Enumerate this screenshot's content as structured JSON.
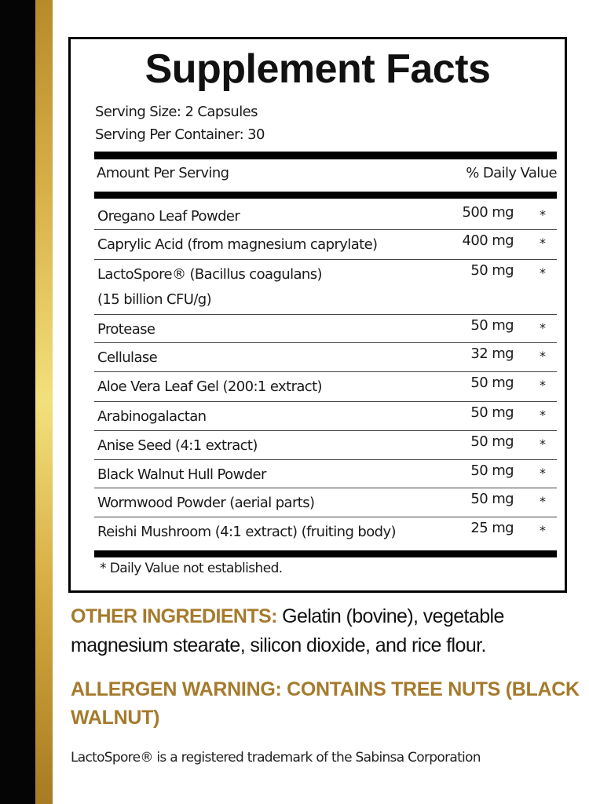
{
  "title": "Supplement Facts",
  "serving_size": "Serving Size: 2 Capsules",
  "servings_per_container": "Serving Per Container: 30",
  "header": {
    "amount": "Amount Per Serving",
    "dv": "% Daily Value"
  },
  "rows": [
    {
      "name": "Oregano Leaf Powder",
      "amount": "500 mg",
      "dv": "*"
    },
    {
      "name": "Caprylic Acid (from magnesium caprylate)",
      "amount": "400 mg",
      "dv": "*"
    },
    {
      "name": "LactoSpore® (Bacillus coagulans)",
      "name2": "(15 billion CFU/g)",
      "amount": "50 mg",
      "dv": "*"
    },
    {
      "name": "Protease",
      "amount": "50 mg",
      "dv": "*"
    },
    {
      "name": "Cellulase",
      "amount": "32 mg",
      "dv": "*"
    },
    {
      "name": "Aloe Vera Leaf Gel (200:1 extract)",
      "amount": "50 mg",
      "dv": "*"
    },
    {
      "name": "Arabinogalactan",
      "amount": "50 mg",
      "dv": "*"
    },
    {
      "name": "Anise Seed (4:1 extract)",
      "amount": "50 mg",
      "dv": "*"
    },
    {
      "name": "Black Walnut Hull Powder",
      "amount": "50 mg",
      "dv": "*"
    },
    {
      "name": "Wormwood Powder (aerial parts)",
      "amount": "50 mg",
      "dv": "*"
    },
    {
      "name": "Reishi Mushroom (4:1 extract) (fruiting body)",
      "amount": "25 mg",
      "dv": "*"
    }
  ],
  "footnote": "* Daily Value not established.",
  "other_ingredients": {
    "label": "OTHER INGREDIENTS:",
    "text": " Gelatin (bovine), vegetable magnesium stearate, silicon dioxide, and rice flour."
  },
  "allergen_warning": "ALLERGEN WARNING: CONTAINS TREE NUTS (BLACK WALNUT)",
  "trademark": "LactoSpore® is a registered trademark of the Sabinsa Corporation",
  "colors": {
    "gold_text": "#a57a2c",
    "black_bar": "#050505",
    "gold_bar": "#d9b24a"
  }
}
